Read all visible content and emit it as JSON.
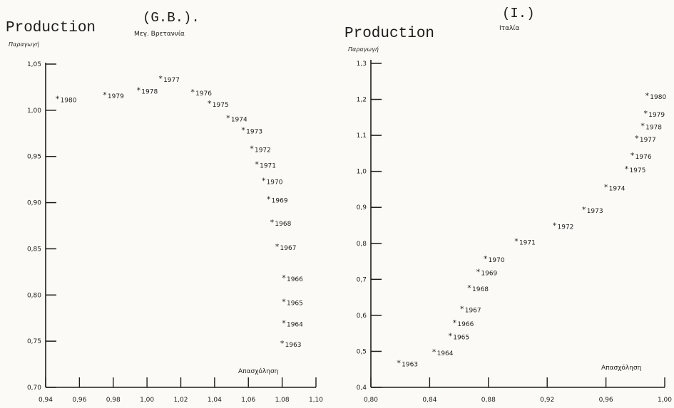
{
  "chart_data": [
    {
      "type": "scatter",
      "panel_label": "(G.B.).",
      "country_label": "Μεγ. Βρεταννία",
      "ylabel_en": "Production",
      "ylabel_gr": "Παραγωγή",
      "xlabel_gr": "Απασχόληση",
      "xlim": [
        0.94,
        1.1
      ],
      "ylim": [
        0.7,
        1.05
      ],
      "x_ticks": [
        "0,94",
        "0,96",
        "0,98",
        "1,00",
        "1,02",
        "1,04",
        "1,06",
        "1,08",
        "1,10"
      ],
      "y_ticks": [
        "0,70",
        "0,75",
        "0,80",
        "0,85",
        "0,90",
        "0,95",
        "1,00",
        "1,05"
      ],
      "points": [
        {
          "year": "1963",
          "x": 1.08,
          "y": 0.747
        },
        {
          "year": "1964",
          "x": 1.081,
          "y": 0.769
        },
        {
          "year": "1965",
          "x": 1.081,
          "y": 0.792
        },
        {
          "year": "1966",
          "x": 1.081,
          "y": 0.818
        },
        {
          "year": "1967",
          "x": 1.077,
          "y": 0.852
        },
        {
          "year": "1968",
          "x": 1.074,
          "y": 0.878
        },
        {
          "year": "1969",
          "x": 1.072,
          "y": 0.903
        },
        {
          "year": "1970",
          "x": 1.069,
          "y": 0.923
        },
        {
          "year": "1971",
          "x": 1.065,
          "y": 0.941
        },
        {
          "year": "1972",
          "x": 1.062,
          "y": 0.958
        },
        {
          "year": "1973",
          "x": 1.057,
          "y": 0.978
        },
        {
          "year": "1974",
          "x": 1.048,
          "y": 0.991
        },
        {
          "year": "1975",
          "x": 1.037,
          "y": 1.007
        },
        {
          "year": "1976",
          "x": 1.027,
          "y": 1.019
        },
        {
          "year": "1977",
          "x": 1.008,
          "y": 1.034
        },
        {
          "year": "1978",
          "x": 0.995,
          "y": 1.021
        },
        {
          "year": "1979",
          "x": 0.975,
          "y": 1.016
        },
        {
          "year": "1980",
          "x": 0.947,
          "y": 1.012
        }
      ]
    },
    {
      "type": "scatter",
      "panel_label": "(I.)",
      "country_label": "Ιταλία",
      "ylabel_en": "Production",
      "ylabel_gr": "Παραγωγή",
      "xlabel_gr": "Απασχόληση",
      "xlim": [
        0.8,
        1.0
      ],
      "ylim": [
        0.4,
        1.3
      ],
      "x_ticks": [
        "0,80",
        "0,84",
        "0,88",
        "0,92",
        "0,96",
        "1,00"
      ],
      "y_ticks": [
        "0,4",
        "0,5",
        "0,6",
        "0,7",
        "0,8",
        "0,9",
        "1,0",
        "1,1",
        "1,2",
        "1,3"
      ],
      "points": [
        {
          "year": "1963",
          "x": 0.819,
          "y": 0.466
        },
        {
          "year": "1964",
          "x": 0.843,
          "y": 0.497
        },
        {
          "year": "1965",
          "x": 0.854,
          "y": 0.541
        },
        {
          "year": "1966",
          "x": 0.857,
          "y": 0.578
        },
        {
          "year": "1967",
          "x": 0.862,
          "y": 0.617
        },
        {
          "year": "1968",
          "x": 0.867,
          "y": 0.675
        },
        {
          "year": "1969",
          "x": 0.873,
          "y": 0.719
        },
        {
          "year": "1970",
          "x": 0.878,
          "y": 0.756
        },
        {
          "year": "1971",
          "x": 0.899,
          "y": 0.805
        },
        {
          "year": "1972",
          "x": 0.925,
          "y": 0.848
        },
        {
          "year": "1973",
          "x": 0.945,
          "y": 0.893
        },
        {
          "year": "1974",
          "x": 0.96,
          "y": 0.955
        },
        {
          "year": "1975",
          "x": 0.974,
          "y": 1.005
        },
        {
          "year": "1976",
          "x": 0.978,
          "y": 1.043
        },
        {
          "year": "1977",
          "x": 0.981,
          "y": 1.09
        },
        {
          "year": "1978",
          "x": 0.985,
          "y": 1.125
        },
        {
          "year": "1979",
          "x": 0.987,
          "y": 1.16
        },
        {
          "year": "1980",
          "x": 0.988,
          "y": 1.209
        }
      ]
    }
  ]
}
